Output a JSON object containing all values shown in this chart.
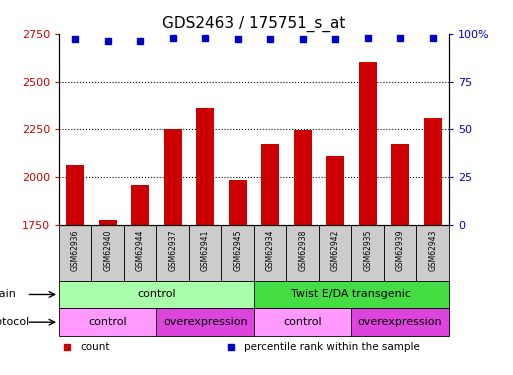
{
  "title": "GDS2463 / 175751_s_at",
  "samples": [
    "GSM62936",
    "GSM62940",
    "GSM62944",
    "GSM62937",
    "GSM62941",
    "GSM62945",
    "GSM62934",
    "GSM62938",
    "GSM62942",
    "GSM62935",
    "GSM62939",
    "GSM62943"
  ],
  "counts": [
    2065,
    1775,
    1960,
    2250,
    2360,
    1985,
    2175,
    2245,
    2110,
    2600,
    2175,
    2310
  ],
  "percentile_ranks": [
    97,
    96,
    96,
    98,
    98,
    97,
    97,
    97,
    97,
    98,
    98,
    98
  ],
  "ylim_left": [
    1750,
    2750
  ],
  "ylim_right": [
    0,
    100
  ],
  "yticks_left": [
    1750,
    2000,
    2250,
    2500,
    2750
  ],
  "yticks_right": [
    0,
    25,
    50,
    75,
    100
  ],
  "bar_color": "#cc0000",
  "dot_color": "#0000cc",
  "strain_groups": [
    {
      "label": "control",
      "start": 0,
      "end": 6,
      "color": "#aaffaa"
    },
    {
      "label": "Twist E/DA transgenic",
      "start": 6,
      "end": 12,
      "color": "#44dd44"
    }
  ],
  "protocol_groups": [
    {
      "label": "control",
      "start": 0,
      "end": 3,
      "color": "#ff99ff"
    },
    {
      "label": "overexpression",
      "start": 3,
      "end": 6,
      "color": "#dd44dd"
    },
    {
      "label": "control",
      "start": 6,
      "end": 9,
      "color": "#ff99ff"
    },
    {
      "label": "overexpression",
      "start": 9,
      "end": 12,
      "color": "#dd44dd"
    }
  ],
  "legend_items": [
    {
      "label": "count",
      "color": "#cc0000",
      "marker": "s"
    },
    {
      "label": "percentile rank within the sample",
      "color": "#0000cc",
      "marker": "s"
    }
  ],
  "xlabel_strain": "strain",
  "xlabel_protocol": "protocol",
  "background_color": "#ffffff",
  "tick_label_color_left": "#cc0000",
  "tick_label_color_right": "#0000cc",
  "tickbox_color": "#cccccc",
  "grid_yticks": [
    2000,
    2250,
    2500
  ]
}
